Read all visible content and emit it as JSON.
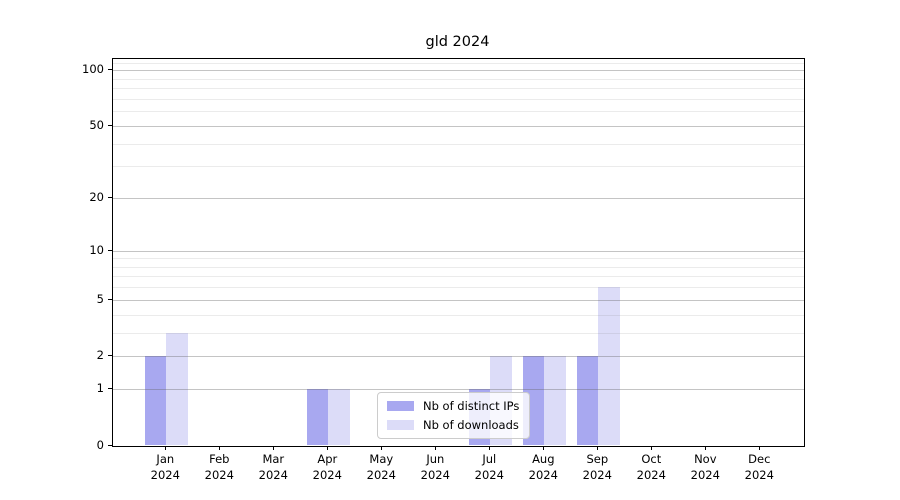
{
  "chart_data": {
    "type": "bar",
    "title": "gld 2024",
    "categories": [
      "Jan",
      "Feb",
      "Mar",
      "Apr",
      "May",
      "Jun",
      "Jul",
      "Aug",
      "Sep",
      "Oct",
      "Nov",
      "Dec"
    ],
    "category_year": "2024",
    "series": [
      {
        "name": "Nb of distinct IPs",
        "color": "#a8a8f0",
        "values": [
          2,
          0,
          0,
          1,
          0,
          0,
          1,
          2,
          2,
          0,
          0,
          0
        ]
      },
      {
        "name": "Nb of downloads",
        "color": "#dcdcf8",
        "values": [
          3,
          0,
          0,
          1,
          0,
          0,
          2,
          2,
          6,
          0,
          0,
          0
        ]
      }
    ],
    "y_axis": {
      "scale": "log(value+1)",
      "ticks": [
        0,
        1,
        2,
        5,
        10,
        20,
        50,
        100
      ],
      "minor_gridlines": [
        3,
        4,
        6,
        7,
        8,
        9,
        30,
        40,
        60,
        70,
        80,
        90,
        110
      ],
      "max": 115
    },
    "legend": {
      "position": "lower-center",
      "labels": [
        "Nb of distinct IPs",
        "Nb of downloads"
      ]
    },
    "grid": "both"
  }
}
